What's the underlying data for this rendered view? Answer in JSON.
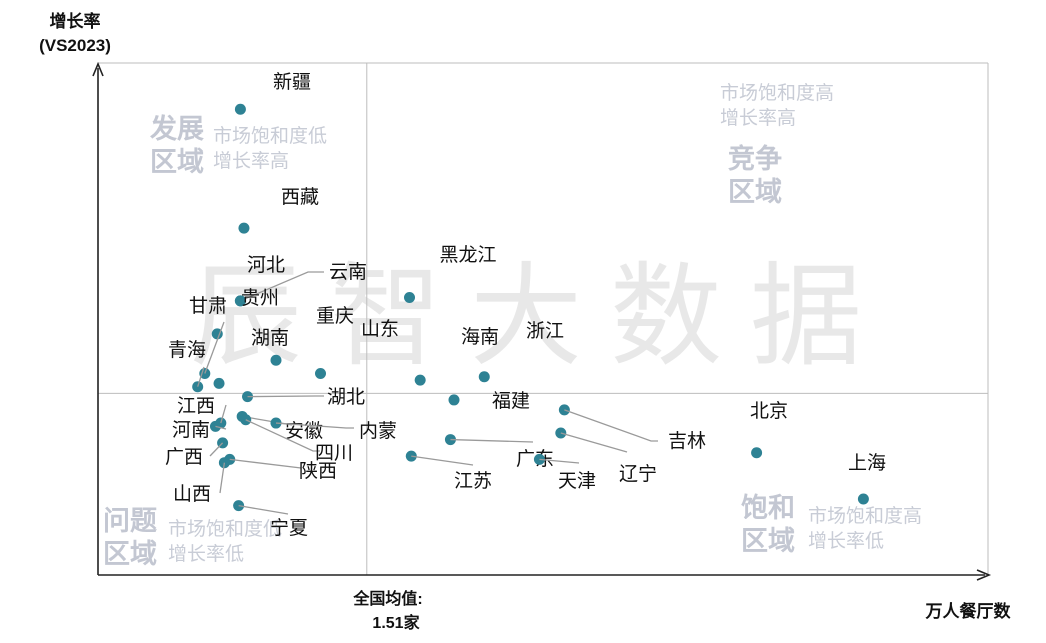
{
  "chart_data": {
    "type": "scatter",
    "title": "",
    "xlabel": "万人餐厅数",
    "ylabel_line1": "增长率",
    "ylabel_line2": "(VS2023)",
    "reference_line_label_line1": "全国均值:",
    "reference_line_label_line2": "1.51家",
    "x_reference": 1.51,
    "watermark": "辰智大数据",
    "quadrants": [
      {
        "id": "development",
        "title_line1": "发展",
        "title_line2": "区域",
        "desc_line1": "市场饱和度低",
        "desc_line2": "增长率高"
      },
      {
        "id": "competition",
        "title_line1": "竞争",
        "title_line2": "区域",
        "desc_line1": "市场饱和度高",
        "desc_line2": "增长率高"
      },
      {
        "id": "problem",
        "title_line1": "问题",
        "title_line2": "区域",
        "desc_line1": "市场饱和度低",
        "desc_line2": "增长率低"
      },
      {
        "id": "saturation",
        "title_line1": "饱和",
        "title_line2": "区域",
        "desc_line1": "市场饱和度高",
        "desc_line2": "增长率低"
      }
    ],
    "points": [
      {
        "name": "新疆",
        "x": 0.8,
        "y": 8.6
      },
      {
        "name": "西藏",
        "x": 0.82,
        "y": 5.0
      },
      {
        "name": "云南",
        "x": 0.8,
        "y": 2.8
      },
      {
        "name": "河北",
        "x": 0.8,
        "y": 2.8
      },
      {
        "name": "贵州",
        "x": 0.67,
        "y": 1.8
      },
      {
        "name": "甘肃",
        "x": 0.6,
        "y": 0.6
      },
      {
        "name": "湖南",
        "x": 0.68,
        "y": 0.3
      },
      {
        "name": "重庆",
        "x": 1.0,
        "y": 1.0
      },
      {
        "name": "山东",
        "x": 1.25,
        "y": 0.6
      },
      {
        "name": "青海",
        "x": 0.56,
        "y": 0.2
      },
      {
        "name": "黑龙江",
        "x": 1.75,
        "y": 2.9
      },
      {
        "name": "海南",
        "x": 1.81,
        "y": 0.4
      },
      {
        "name": "浙江",
        "x": 2.17,
        "y": 0.5
      },
      {
        "name": "福建",
        "x": 2.0,
        "y": -0.2
      },
      {
        "name": "湖北",
        "x": 0.84,
        "y": -0.1
      },
      {
        "name": "江西",
        "x": 0.69,
        "y": -0.9
      },
      {
        "name": "河南",
        "x": 0.66,
        "y": -1.0
      },
      {
        "name": "安徽",
        "x": 0.81,
        "y": -0.7
      },
      {
        "name": "内蒙",
        "x": 1.0,
        "y": -0.9
      },
      {
        "name": "四川",
        "x": 0.83,
        "y": -0.8
      },
      {
        "name": "广西",
        "x": 0.7,
        "y": -1.5
      },
      {
        "name": "陕西",
        "x": 0.74,
        "y": -2.0
      },
      {
        "name": "山西",
        "x": 0.71,
        "y": -2.1
      },
      {
        "name": "宁夏",
        "x": 0.79,
        "y": -3.4
      },
      {
        "name": "广东",
        "x": 1.98,
        "y": -1.4
      },
      {
        "name": "江苏",
        "x": 1.76,
        "y": -1.9
      },
      {
        "name": "天津",
        "x": 2.48,
        "y": -2.0
      },
      {
        "name": "辽宁",
        "x": 2.6,
        "y": -1.2
      },
      {
        "name": "吉林",
        "x": 2.62,
        "y": -0.5
      },
      {
        "name": "北京",
        "x": 3.7,
        "y": -1.8
      },
      {
        "name": "上海",
        "x": 4.3,
        "y": -3.2
      }
    ],
    "xlim": [
      0,
      5
    ],
    "ylim": [
      -5.5,
      10
    ],
    "point_color": "#2e8294",
    "grid": false
  }
}
